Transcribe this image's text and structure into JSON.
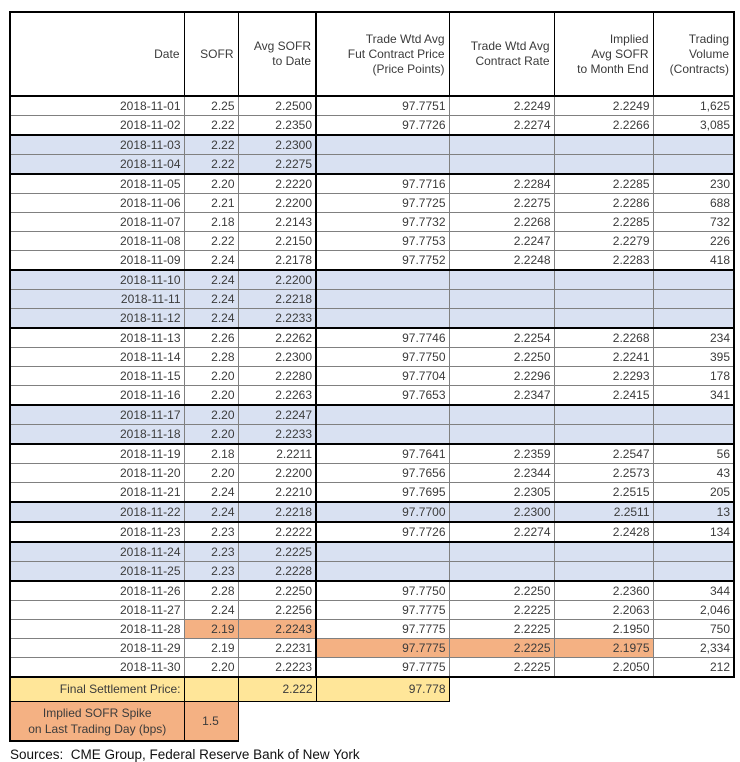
{
  "colors": {
    "lavender": "#D9E1F2",
    "orange": "#F4B183",
    "yellow": "#FFE699",
    "grid": "#808080",
    "edge": "#000000"
  },
  "chart_data": {
    "type": "table",
    "columns": [
      "Date",
      "SOFR",
      "Avg SOFR\nto Date",
      "Trade Wtd Avg\nFut Contract Price\n(Price Points)",
      "Trade Wtd Avg\nContract Rate",
      "Implied\nAvg SOFR\nto Month End",
      "Trading\nVolume\n(Contracts)"
    ],
    "rows": [
      {
        "date": "2018-11-01",
        "sofr": "2.25",
        "avg_sofr": "2.2500",
        "fut_price": "97.7751",
        "contract_rate": "2.2249",
        "implied_avg": "2.2249",
        "volume": "1,625",
        "hl": false
      },
      {
        "date": "2018-11-02",
        "sofr": "2.22",
        "avg_sofr": "2.2350",
        "fut_price": "97.7726",
        "contract_rate": "2.2274",
        "implied_avg": "2.2266",
        "volume": "3,085",
        "hl": false
      },
      {
        "date": "2018-11-03",
        "sofr": "2.22",
        "avg_sofr": "2.2300",
        "fut_price": "",
        "contract_rate": "",
        "implied_avg": "",
        "volume": "",
        "hl": true
      },
      {
        "date": "2018-11-04",
        "sofr": "2.22",
        "avg_sofr": "2.2275",
        "fut_price": "",
        "contract_rate": "",
        "implied_avg": "",
        "volume": "",
        "hl": true
      },
      {
        "date": "2018-11-05",
        "sofr": "2.20",
        "avg_sofr": "2.2220",
        "fut_price": "97.7716",
        "contract_rate": "2.2284",
        "implied_avg": "2.2285",
        "volume": "230",
        "hl": false
      },
      {
        "date": "2018-11-06",
        "sofr": "2.21",
        "avg_sofr": "2.2200",
        "fut_price": "97.7725",
        "contract_rate": "2.2275",
        "implied_avg": "2.2286",
        "volume": "688",
        "hl": false
      },
      {
        "date": "2018-11-07",
        "sofr": "2.18",
        "avg_sofr": "2.2143",
        "fut_price": "97.7732",
        "contract_rate": "2.2268",
        "implied_avg": "2.2285",
        "volume": "732",
        "hl": false
      },
      {
        "date": "2018-11-08",
        "sofr": "2.22",
        "avg_sofr": "2.2150",
        "fut_price": "97.7753",
        "contract_rate": "2.2247",
        "implied_avg": "2.2279",
        "volume": "226",
        "hl": false
      },
      {
        "date": "2018-11-09",
        "sofr": "2.24",
        "avg_sofr": "2.2178",
        "fut_price": "97.7752",
        "contract_rate": "2.2248",
        "implied_avg": "2.2283",
        "volume": "418",
        "hl": false
      },
      {
        "date": "2018-11-10",
        "sofr": "2.24",
        "avg_sofr": "2.2200",
        "fut_price": "",
        "contract_rate": "",
        "implied_avg": "",
        "volume": "",
        "hl": true
      },
      {
        "date": "2018-11-11",
        "sofr": "2.24",
        "avg_sofr": "2.2218",
        "fut_price": "",
        "contract_rate": "",
        "implied_avg": "",
        "volume": "",
        "hl": true
      },
      {
        "date": "2018-11-12",
        "sofr": "2.24",
        "avg_sofr": "2.2233",
        "fut_price": "",
        "contract_rate": "",
        "implied_avg": "",
        "volume": "",
        "hl": true
      },
      {
        "date": "2018-11-13",
        "sofr": "2.26",
        "avg_sofr": "2.2262",
        "fut_price": "97.7746",
        "contract_rate": "2.2254",
        "implied_avg": "2.2268",
        "volume": "234",
        "hl": false
      },
      {
        "date": "2018-11-14",
        "sofr": "2.28",
        "avg_sofr": "2.2300",
        "fut_price": "97.7750",
        "contract_rate": "2.2250",
        "implied_avg": "2.2241",
        "volume": "395",
        "hl": false
      },
      {
        "date": "2018-11-15",
        "sofr": "2.20",
        "avg_sofr": "2.2280",
        "fut_price": "97.7704",
        "contract_rate": "2.2296",
        "implied_avg": "2.2293",
        "volume": "178",
        "hl": false
      },
      {
        "date": "2018-11-16",
        "sofr": "2.20",
        "avg_sofr": "2.2263",
        "fut_price": "97.7653",
        "contract_rate": "2.2347",
        "implied_avg": "2.2415",
        "volume": "341",
        "hl": false
      },
      {
        "date": "2018-11-17",
        "sofr": "2.20",
        "avg_sofr": "2.2247",
        "fut_price": "",
        "contract_rate": "",
        "implied_avg": "",
        "volume": "",
        "hl": true
      },
      {
        "date": "2018-11-18",
        "sofr": "2.20",
        "avg_sofr": "2.2233",
        "fut_price": "",
        "contract_rate": "",
        "implied_avg": "",
        "volume": "",
        "hl": true
      },
      {
        "date": "2018-11-19",
        "sofr": "2.18",
        "avg_sofr": "2.2211",
        "fut_price": "97.7641",
        "contract_rate": "2.2359",
        "implied_avg": "2.2547",
        "volume": "56",
        "hl": false
      },
      {
        "date": "2018-11-20",
        "sofr": "2.20",
        "avg_sofr": "2.2200",
        "fut_price": "97.7656",
        "contract_rate": "2.2344",
        "implied_avg": "2.2573",
        "volume": "43",
        "hl": false
      },
      {
        "date": "2018-11-21",
        "sofr": "2.24",
        "avg_sofr": "2.2210",
        "fut_price": "97.7695",
        "contract_rate": "2.2305",
        "implied_avg": "2.2515",
        "volume": "205",
        "hl": false
      },
      {
        "date": "2018-11-22",
        "sofr": "2.24",
        "avg_sofr": "2.2218",
        "fut_price": "97.7700",
        "contract_rate": "2.2300",
        "implied_avg": "2.2511",
        "volume": "13",
        "hl": true
      },
      {
        "date": "2018-11-23",
        "sofr": "2.23",
        "avg_sofr": "2.2222",
        "fut_price": "97.7726",
        "contract_rate": "2.2274",
        "implied_avg": "2.2428",
        "volume": "134",
        "hl": false
      },
      {
        "date": "2018-11-24",
        "sofr": "2.23",
        "avg_sofr": "2.2225",
        "fut_price": "",
        "contract_rate": "",
        "implied_avg": "",
        "volume": "",
        "hl": true
      },
      {
        "date": "2018-11-25",
        "sofr": "2.23",
        "avg_sofr": "2.2228",
        "fut_price": "",
        "contract_rate": "",
        "implied_avg": "",
        "volume": "",
        "hl": true
      },
      {
        "date": "2018-11-26",
        "sofr": "2.28",
        "avg_sofr": "2.2250",
        "fut_price": "97.7750",
        "contract_rate": "2.2250",
        "implied_avg": "2.2360",
        "volume": "344",
        "hl": false
      },
      {
        "date": "2018-11-27",
        "sofr": "2.24",
        "avg_sofr": "2.2256",
        "fut_price": "97.7775",
        "contract_rate": "2.2225",
        "implied_avg": "2.2063",
        "volume": "2,046",
        "hl": false
      },
      {
        "date": "2018-11-28",
        "sofr": "2.19",
        "avg_sofr": "2.2243",
        "fut_price": "97.7775",
        "contract_rate": "2.2225",
        "implied_avg": "2.1950",
        "volume": "750",
        "hl": false,
        "orange": [
          "sofr",
          "avg_sofr"
        ]
      },
      {
        "date": "2018-11-29",
        "sofr": "2.19",
        "avg_sofr": "2.2231",
        "fut_price": "97.7775",
        "contract_rate": "2.2225",
        "implied_avg": "2.1975",
        "volume": "2,334",
        "hl": false,
        "orange": [
          "fut_price",
          "contract_rate",
          "implied_avg"
        ]
      },
      {
        "date": "2018-11-30",
        "sofr": "2.20",
        "avg_sofr": "2.2223",
        "fut_price": "97.7775",
        "contract_rate": "2.2225",
        "implied_avg": "2.2050",
        "volume": "212",
        "hl": false
      }
    ],
    "final_settlement": {
      "label": "Final Settlement Price:",
      "avg_sofr": "2.222",
      "fut_price": "97.778"
    },
    "implied_spike": {
      "label": "Implied SOFR Spike\non Last Trading Day (bps)",
      "value": "1.5"
    }
  },
  "footer": {
    "sources": "Sources:  CME Group, Federal Reserve Bank of New York"
  }
}
